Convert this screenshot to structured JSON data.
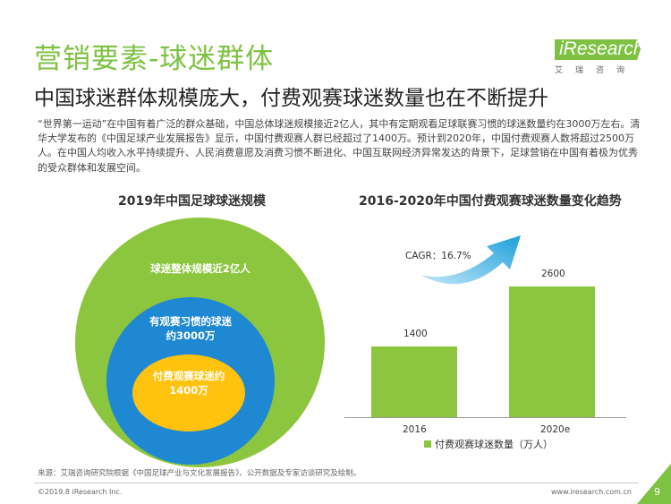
{
  "header": {
    "title": "营销要素-球迷群体",
    "subtitle": "中国球迷群体规模庞大，付费观赛球迷数量也在不断提升",
    "logo_main": "iResearch",
    "logo_sub": "艾瑞咨询"
  },
  "intro": "“世界第一运动”在中国有着广泛的群众基础，中国总体球迷规模接近2亿人，其中有定期观看足球联赛习惯的球迷数量约在3000万左右。清华大学发布的《中国足球产业发展报告》显示，中国付费观赛人群已经超过了1400万。预计到2020年，中国付费观赛人数将超过2500万人。在中国人均收入水平持续提升、人民消费意愿及消费习惯不断进化、中国互联网经济异常发达的背景下，足球营销在中国有着极为优秀的受众群体和发展空间。",
  "left_chart": {
    "title": "2019年中国足球球迷规模",
    "outer_label": "球迷整体规模近2亿人",
    "mid_label_1": "有观赛习惯的球迷",
    "mid_label_2": "约3000万",
    "inner_label_1": "付费观赛球迷约",
    "inner_label_2": "1400万",
    "colors": {
      "outer": "#8cc63f",
      "mid": "#1e88d2",
      "inner": "#ffc20e"
    }
  },
  "chart_data": {
    "type": "bar",
    "title": "2016-2020年中国付费观赛球迷数量变化趋势",
    "categories": [
      "2016",
      "2020e"
    ],
    "series": [
      {
        "name": "付费观赛球迷数量（万人）",
        "values": [
          1400,
          2600
        ]
      }
    ],
    "annotation": "CAGR：16.7%",
    "ylim": [
      0,
      3000
    ],
    "legend_position": "bottom",
    "grid": false,
    "color": "#8cc63f"
  },
  "footer": {
    "source": "来源：艾瑞咨询研究院根据《中国足球产业与文化发展报告》、公开数据及专家访谈研究及绘制。",
    "copyright": "©2019.8 iResearch Inc.",
    "url": "www.iresearch.com.cn",
    "page": "9"
  }
}
